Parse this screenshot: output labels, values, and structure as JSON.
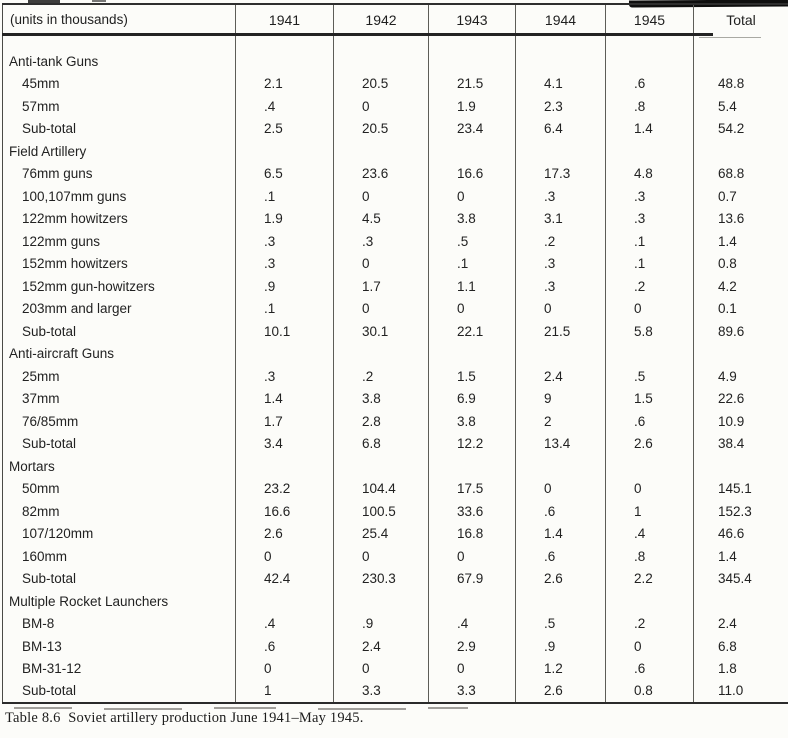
{
  "table": {
    "unit_label": "(units in thousands)",
    "columns": [
      "1941",
      "1942",
      "1943",
      "1944",
      "1945",
      "Total"
    ],
    "sections": [
      {
        "name": "Anti-tank Guns",
        "rows": [
          {
            "label": "45mm",
            "values": [
              "2.1",
              "20.5",
              "21.5",
              "4.1",
              ".6",
              "48.8"
            ]
          },
          {
            "label": "57mm",
            "values": [
              ".4",
              "0",
              "1.9",
              "2.3",
              ".8",
              "5.4"
            ]
          },
          {
            "label": "Sub-total",
            "values": [
              "2.5",
              "20.5",
              "23.4",
              "6.4",
              "1.4",
              "54.2"
            ]
          }
        ]
      },
      {
        "name": "Field Artillery",
        "rows": [
          {
            "label": "76mm guns",
            "values": [
              "6.5",
              "23.6",
              "16.6",
              "17.3",
              "4.8",
              "68.8"
            ]
          },
          {
            "label": "100,107mm guns",
            "values": [
              ".1",
              "0",
              "0",
              ".3",
              ".3",
              "0.7"
            ]
          },
          {
            "label": "122mm howitzers",
            "values": [
              "1.9",
              "4.5",
              "3.8",
              "3.1",
              ".3",
              "13.6"
            ]
          },
          {
            "label": "122mm guns",
            "values": [
              ".3",
              ".3",
              ".5",
              ".2",
              ".1",
              "1.4"
            ]
          },
          {
            "label": "152mm howitzers",
            "values": [
              ".3",
              "0",
              ".1",
              ".3",
              ".1",
              "0.8"
            ]
          },
          {
            "label": "152mm gun-howitzers",
            "values": [
              ".9",
              "1.7",
              "1.1",
              ".3",
              ".2",
              "4.2"
            ]
          },
          {
            "label": "203mm and larger",
            "values": [
              ".1",
              "0",
              "0",
              "0",
              "0",
              "0.1"
            ]
          },
          {
            "label": "Sub-total",
            "values": [
              "10.1",
              "30.1",
              "22.1",
              "21.5",
              "5.8",
              "89.6"
            ]
          }
        ]
      },
      {
        "name": "Anti-aircraft Guns",
        "rows": [
          {
            "label": "25mm",
            "values": [
              ".3",
              ".2",
              "1.5",
              "2.4",
              ".5",
              "4.9"
            ]
          },
          {
            "label": "37mm",
            "values": [
              "1.4",
              "3.8",
              "6.9",
              "9",
              "1.5",
              "22.6"
            ]
          },
          {
            "label": "76/85mm",
            "values": [
              "1.7",
              "2.8",
              "3.8",
              "2",
              ".6",
              "10.9"
            ]
          },
          {
            "label": "Sub-total",
            "values": [
              "3.4",
              "6.8",
              "12.2",
              "13.4",
              "2.6",
              "38.4"
            ]
          }
        ]
      },
      {
        "name": "Mortars",
        "rows": [
          {
            "label": "50mm",
            "values": [
              "23.2",
              "104.4",
              "17.5",
              "0",
              "0",
              "145.1"
            ]
          },
          {
            "label": "82mm",
            "values": [
              "16.6",
              "100.5",
              "33.6",
              ".6",
              "1",
              "152.3"
            ]
          },
          {
            "label": "107/120mm",
            "values": [
              "2.6",
              "25.4",
              "16.8",
              "1.4",
              ".4",
              "46.6"
            ]
          },
          {
            "label": "160mm",
            "values": [
              "0",
              "0",
              "0",
              ".6",
              ".8",
              "1.4"
            ]
          },
          {
            "label": "Sub-total",
            "values": [
              "42.4",
              "230.3",
              "67.9",
              "2.6",
              "2.2",
              "345.4"
            ]
          }
        ]
      },
      {
        "name": "Multiple Rocket Launchers",
        "rows": [
          {
            "label": "BM-8",
            "values": [
              ".4",
              ".9",
              ".4",
              ".5",
              ".2",
              "2.4"
            ]
          },
          {
            "label": "BM-13",
            "values": [
              ".6",
              "2.4",
              "2.9",
              ".9",
              "0",
              "6.8"
            ]
          },
          {
            "label": "BM-31-12",
            "values": [
              "0",
              "0",
              "0",
              "1.2",
              ".6",
              "1.8"
            ]
          },
          {
            "label": "Sub-total",
            "values": [
              "1",
              "3.3",
              "3.3",
              "2.6",
              "0.8",
              "11.0"
            ]
          }
        ]
      }
    ]
  },
  "caption": "Table 8.6  Soviet artillery production June 1941–May 1945."
}
